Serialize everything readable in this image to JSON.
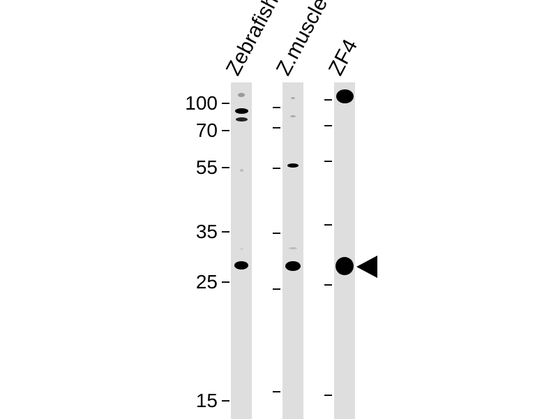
{
  "lanes": [
    {
      "label": "Zebrafish"
    },
    {
      "label": "Z.muscle"
    },
    {
      "label": "ZF4"
    }
  ],
  "markers": [
    "100",
    "70",
    "55",
    "35",
    "25",
    "15"
  ],
  "arrow_icon": "left-pointing-triangle"
}
